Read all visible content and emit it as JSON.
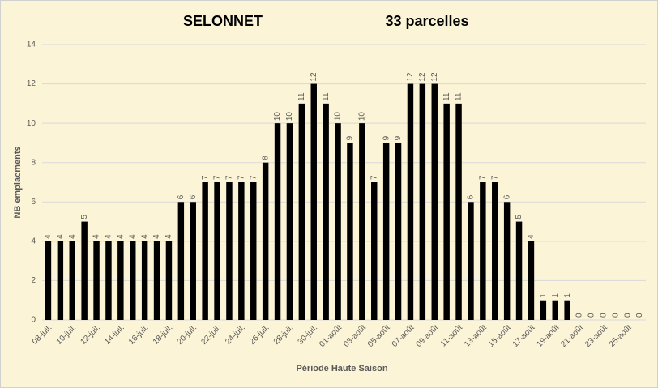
{
  "chart_data": {
    "type": "bar",
    "title": "SELONNET",
    "subtitle": "33 parcelles",
    "y_label": "NB emplacments",
    "x_label": "Période Haute Saison",
    "categories": [
      "08-juil.",
      null,
      "10-juil.",
      null,
      "12-juil.",
      null,
      "14-juil.",
      null,
      "16-juil.",
      null,
      "18-juil.",
      null,
      "20-juil.",
      null,
      "22-juil.",
      null,
      "24-juil.",
      null,
      "26-juil.",
      null,
      "28-juil.",
      null,
      "30-juil.",
      null,
      "01-août",
      null,
      "03-août",
      null,
      "05-août",
      null,
      "07-août",
      null,
      "09-août",
      null,
      "11-août",
      null,
      "13-août",
      null,
      "15-août",
      null,
      "17-août",
      null,
      "19-août",
      null,
      "21-août",
      null,
      "23-août",
      null,
      "25-août",
      null
    ],
    "values": [
      4,
      4,
      4,
      5,
      4,
      4,
      4,
      4,
      4,
      4,
      4,
      6,
      6,
      7,
      7,
      7,
      7,
      7,
      8,
      10,
      10,
      11,
      12,
      11,
      10,
      9,
      10,
      7,
      9,
      9,
      12,
      12,
      12,
      11,
      11,
      6,
      7,
      7,
      6,
      5,
      4,
      1,
      1,
      1,
      0,
      0,
      0,
      0,
      0,
      0
    ],
    "color": "#000000",
    "ylim": [
      0,
      14
    ],
    "yticks": [
      0,
      2,
      4,
      6,
      8,
      10,
      12,
      14
    ],
    "grid": true
  }
}
